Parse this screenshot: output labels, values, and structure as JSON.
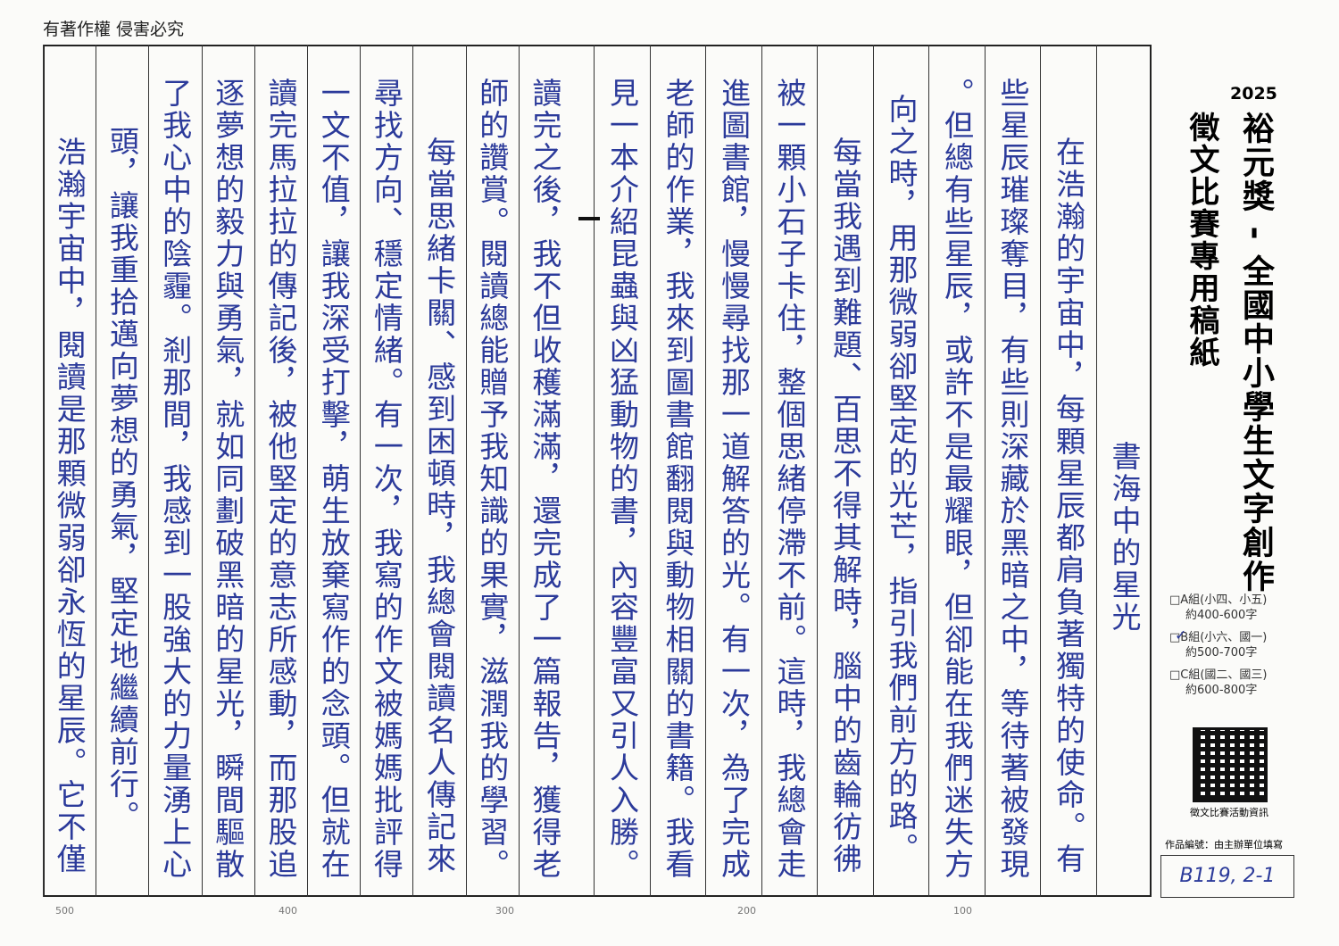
{
  "header": {
    "copyright": "有著作權 侵害必究"
  },
  "sidebar": {
    "year": "2025",
    "title": "裕元獎 - 全國中小學生文字創作",
    "subtitle": "徵文比賽專用稿紙",
    "groups": [
      [
        "□A組(小四、小五)",
        "約400-600字"
      ],
      [
        "□B組(小六、國一)",
        "約500-700字"
      ],
      [
        "□C組(國二、國三)",
        "約600-800字"
      ]
    ],
    "qr_caption": "徵文比賽活動資訊",
    "entry_number_label": "作品編號：由主辦單位填寫",
    "entry_number": "B119, 2-1"
  },
  "paper": {
    "columns": [
      "書海中的星光",
      "在浩瀚的宇宙中，每顆星辰都肩負著獨特的使命。有",
      "些星辰璀璨奪目，有些則深藏於黑暗之中，等待著被發現",
      "。但總有些星辰，或許不是最耀眼，但卻能在我們迷失方",
      "向之時，用那微弱卻堅定的光芒，指引我們前方的路。",
      "每當我遇到難題、百思不得其解時，腦中的齒輪彷彿",
      "被一顆小石子卡住，整個思緒停滯不前。這時，我總會走",
      "進圖書館，慢慢尋找那一道解答的光。有一次，為了完成",
      "老師的作業，我來到圖書館翻閱與動物相關的書籍。我看",
      "見一本介紹昆蟲與凶猛動物的書，內容豐富又引人入勝。",
      "讀完之後，我不但收穫滿滿，還完成了一篇報告，獲得老",
      "師的讚賞。閱讀總能贈予我知識的果實，滋潤我的學習。",
      "每當思緒卡關、感到困頓時，我總會閱讀名人傳記來",
      "尋找方向、穩定情緒。有一次，我寫的作文被媽媽批評得",
      "一文不值，讓我深受打擊，萌生放棄寫作的念頭。但就在",
      "讀完馬拉拉的傳記後，被他堅定的意志所感動，而那股追",
      "逐夢想的毅力與勇氣，就如同劃破黑暗的星光，瞬間驅散",
      "了我心中的陰霾。剎那間，我感到一股強大的力量湧上心",
      "頭，讓我重拾邁向夢想的勇氣，堅定地繼續前行。",
      "浩瀚宇宙中，閱讀是那顆微弱卻永恆的星辰。它不僅"
    ],
    "counts": [
      "100",
      "200",
      "300",
      "400",
      "500"
    ]
  }
}
